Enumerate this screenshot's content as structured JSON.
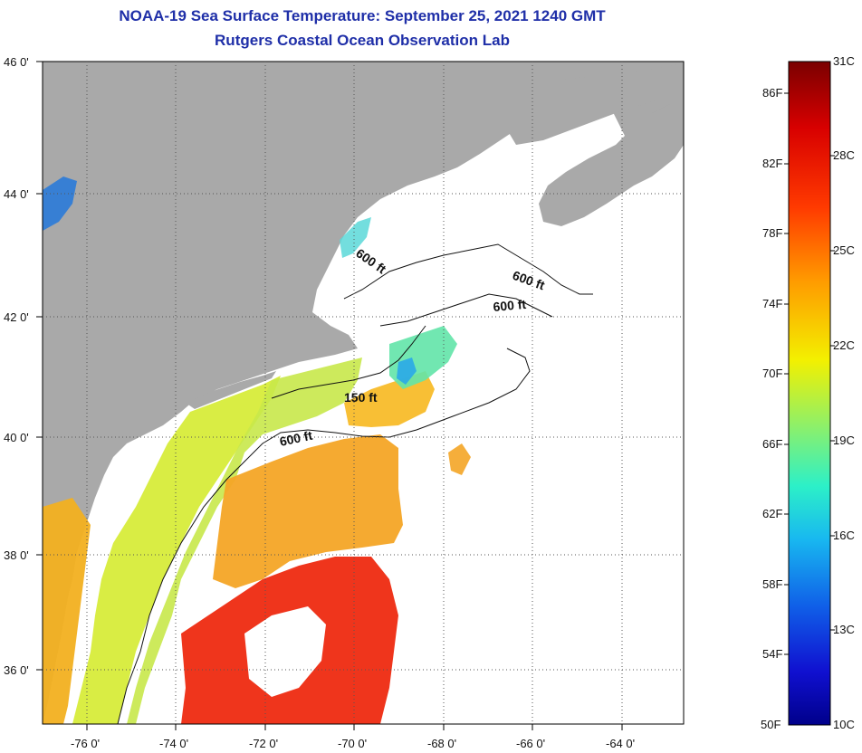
{
  "title": {
    "line1": "NOAA-19 Sea Surface Temperature:  September 25, 2021 1240 GMT",
    "line2": "Rutgers Coastal Ocean Observation Lab"
  },
  "map": {
    "lon_labels": [
      "-76 0'",
      "-74 0'",
      "-72 0'",
      "-70 0'",
      "-68 0'",
      "-66 0'",
      "-64 0'"
    ],
    "lat_labels": [
      "46 0'",
      "44 0'",
      "42 0'",
      "40 0'",
      "38 0'",
      "36 0'"
    ],
    "depth_labels": [
      "600 ft",
      "600 ft",
      "600 ft",
      "150 ft",
      "600 ft"
    ],
    "land_color": "#a9a9a9",
    "cloud_color": "#ffffff"
  },
  "colorbar": {
    "fahrenheit_labels": [
      "86F",
      "82F",
      "78F",
      "74F",
      "70F",
      "66F",
      "62F",
      "58F",
      "54F",
      "50F"
    ],
    "celsius_labels": [
      "31C",
      "28C",
      "25C",
      "22C",
      "19C",
      "16C",
      "13C",
      "10C"
    ]
  }
}
